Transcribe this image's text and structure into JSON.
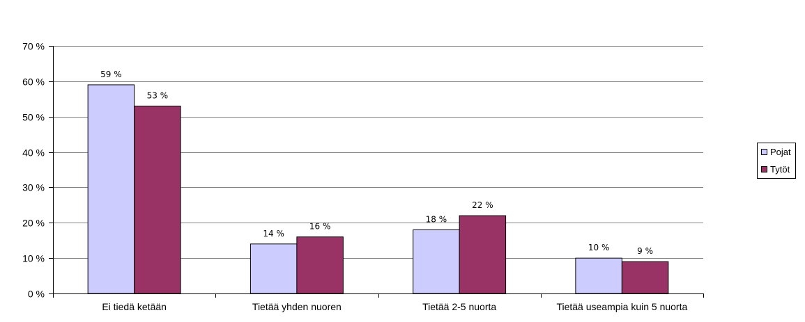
{
  "chart_data": {
    "type": "bar",
    "categories": [
      "Ei tiedä ketään",
      "Tietää yhden nuoren",
      "Tietää 2-5 nuorta",
      "Tietää useampia kuin 5 nuorta"
    ],
    "series": [
      {
        "name": "Pojat",
        "values": [
          59,
          14,
          18,
          10
        ],
        "labels": [
          "59 %",
          "14 %",
          "18 %",
          "10 %"
        ],
        "color": "#CCCCFF"
      },
      {
        "name": "Tytöt",
        "values": [
          53,
          16,
          22,
          9
        ],
        "labels": [
          "53 %",
          "16 %",
          "22 %",
          "9 %"
        ],
        "color": "#993366"
      }
    ],
    "yticks": [
      "0 %",
      "10 %",
      "20 %",
      "30 %",
      "40 %",
      "50 %",
      "60 %",
      "70 %"
    ],
    "ylim": [
      0,
      70
    ],
    "grid": true,
    "legend_position": "right",
    "title": "",
    "xlabel": "",
    "ylabel": ""
  }
}
